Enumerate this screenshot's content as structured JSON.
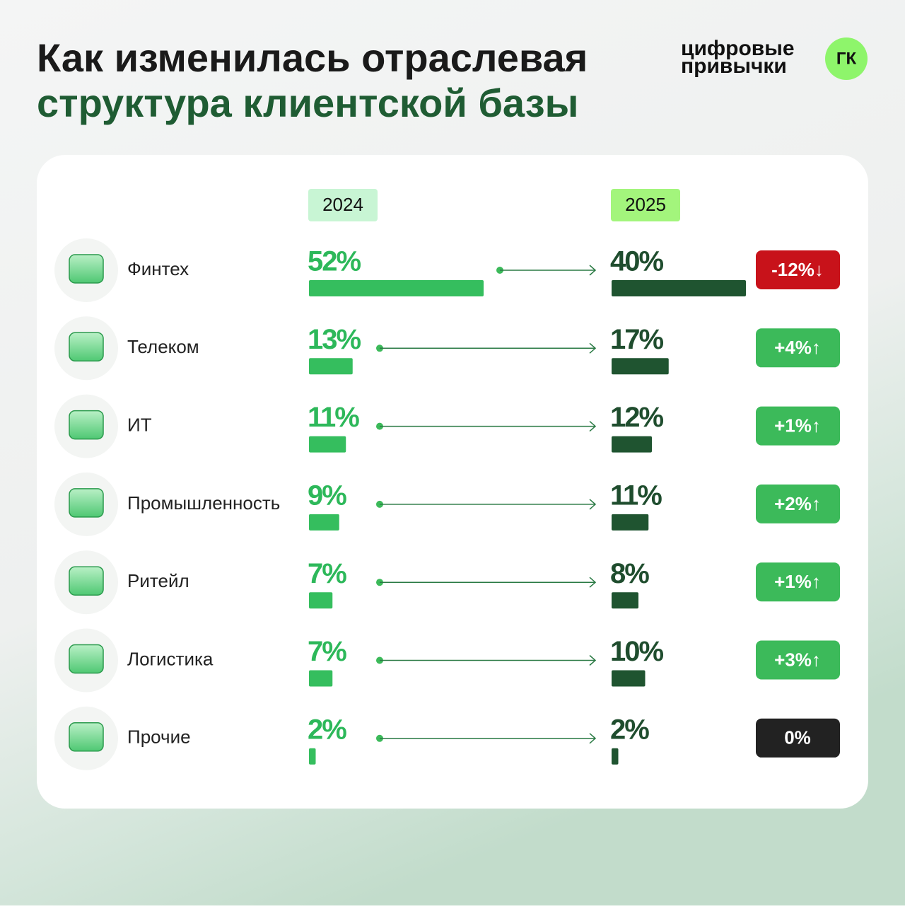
{
  "brand": {
    "name_lines": [
      "цифровые",
      "привычки"
    ],
    "badge": "ГК"
  },
  "chart_data": {
    "type": "bar",
    "title_lines": [
      "Как изменилась отраслевая",
      "структура клиентской базы"
    ],
    "categories": [
      "Финтех",
      "Телеком",
      "ИТ",
      "Промышленность",
      "Ритейл",
      "Логистика",
      "Прочие"
    ],
    "series": [
      {
        "name": "2024",
        "color": "#35be5e",
        "label_color": "#2db85a",
        "header_color": "#c8f5d4",
        "values": [
          52,
          13,
          11,
          9,
          7,
          7,
          2
        ],
        "value_labels": [
          "52%",
          "13%",
          "11%",
          "9%",
          "7%",
          "7%",
          "2%"
        ]
      },
      {
        "name": "2025",
        "color": "#1f5430",
        "label_color": "#1f4d2e",
        "header_color": "#a3f57c",
        "values": [
          40,
          17,
          12,
          11,
          8,
          10,
          2
        ],
        "value_labels": [
          "40%",
          "17%",
          "12%",
          "11%",
          "8%",
          "10%",
          "2%"
        ]
      }
    ],
    "change": {
      "values": [
        -12,
        4,
        1,
        2,
        1,
        3,
        0
      ],
      "value_labels": [
        "-12%↓",
        "+4%↑",
        "+1%↑",
        "+2%↑",
        "+1%↑",
        "+3%↑",
        "0%"
      ],
      "up_color": "#3cba5a",
      "down_color": "#c8121a",
      "zero_color": "#222222"
    }
  }
}
